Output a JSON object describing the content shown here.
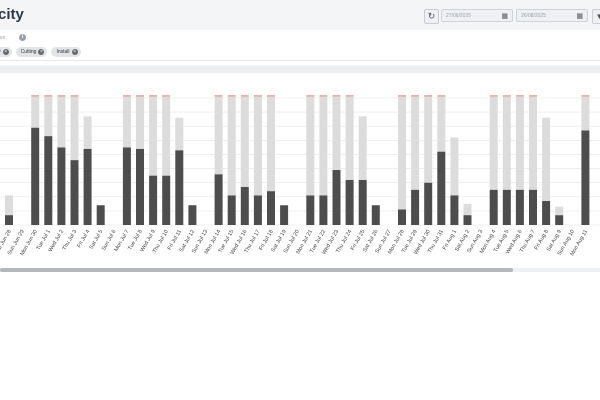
{
  "header": {
    "title": "city",
    "start_date": "27/06/2025",
    "end_date": "26/08/2025"
  },
  "icons": {
    "refresh": "refresh-icon",
    "calendar": "calendar-icon",
    "info": "info-icon",
    "filter": "filter-icon",
    "remove": "close-icon"
  },
  "filters": {
    "label": "ntres",
    "chips": [
      {
        "label": "ly"
      },
      {
        "label": "Cutting"
      },
      {
        "label": "Install"
      }
    ]
  },
  "colors": {
    "used": "#4d4d4d",
    "available": "#dcdcdc",
    "over": "#e7a0a0",
    "grid": "#e5e5e5"
  },
  "chart_data": {
    "type": "bar",
    "stacked": true,
    "grid": true,
    "categories": [
      "Sat Jun 28",
      "Sun Jun 29",
      "Mon Jun 30",
      "Tue Jul 1",
      "Wed Jul 2",
      "Thu Jul 3",
      "Fri Jul 4",
      "Sat Jul 5",
      "Sun Jul 6",
      "Mon Jul 7",
      "Tue Jul 8",
      "Wed Jul 9",
      "Thu Jul 10",
      "Fri Jul 11",
      "Sat Jul 12",
      "Sun Jul 13",
      "Mon Jul 14",
      "Tue Jul 15",
      "Wed Jul 16",
      "Thu Jul 17",
      "Fri Jul 18",
      "Sat Jul 19",
      "Sun Jul 20",
      "Mon Jul 21",
      "Tue Jul 22",
      "Wed Jul 23",
      "Thu Jul 24",
      "Fri Jul 25",
      "Sat Jul 26",
      "Sun Jul 27",
      "Mon Jul 28",
      "Tue Jul 29",
      "Wed Jul 30",
      "Thu Jul 31",
      "Fri Aug 1",
      "Sat Aug 2",
      "Sun Aug 3",
      "Mon Aug 4",
      "Tue Aug 5",
      "Wed Aug 6",
      "Thu Aug 7",
      "Fri Aug 8",
      "Sat Aug 9",
      "Sun Aug 10",
      "Mon Aug 11"
    ],
    "ylim": [
      0,
      9
    ],
    "series": [
      {
        "values": [
          0.7,
          0,
          6.9,
          6.3,
          5.5,
          4.6,
          5.4,
          1.4,
          0,
          5.5,
          5.4,
          3.5,
          3.5,
          5.3,
          1.4,
          0,
          3.6,
          2.1,
          2.7,
          2.1,
          2.4,
          1.4,
          0,
          2.1,
          2.1,
          3.9,
          3.2,
          3.2,
          1.4,
          0,
          1.1,
          2.5,
          3.0,
          5.2,
          2.1,
          0.7,
          0,
          2.5,
          2.5,
          2.5,
          2.5,
          1.7,
          0.7,
          0,
          6.7
        ]
      },
      {
        "values": [
          1.4,
          0,
          2.2,
          2.8,
          3.6,
          4.5,
          2.3,
          0,
          0,
          3.6,
          3.7,
          5.6,
          5.6,
          2.3,
          0,
          0,
          5.5,
          7.0,
          6.4,
          7.0,
          6.7,
          0,
          0,
          7.0,
          7.0,
          5.2,
          5.9,
          4.5,
          0,
          0,
          8.0,
          6.6,
          6.1,
          3.9,
          4.1,
          0.8,
          0,
          6.6,
          6.6,
          6.6,
          6.6,
          5.9,
          0.6,
          0,
          2.4
        ]
      },
      {
        "values": [
          0,
          0,
          0.1,
          0.1,
          0.1,
          0.1,
          0,
          0,
          0,
          0.1,
          0.1,
          0.1,
          0.1,
          0,
          0,
          0,
          0.1,
          0.1,
          0.1,
          0.1,
          0.1,
          0,
          0,
          0.1,
          0.1,
          0.1,
          0.1,
          0,
          0,
          0,
          0.1,
          0.1,
          0.1,
          0.1,
          0,
          0,
          0,
          0.1,
          0.1,
          0.1,
          0.1,
          0,
          0,
          0,
          0.1
        ]
      }
    ]
  }
}
